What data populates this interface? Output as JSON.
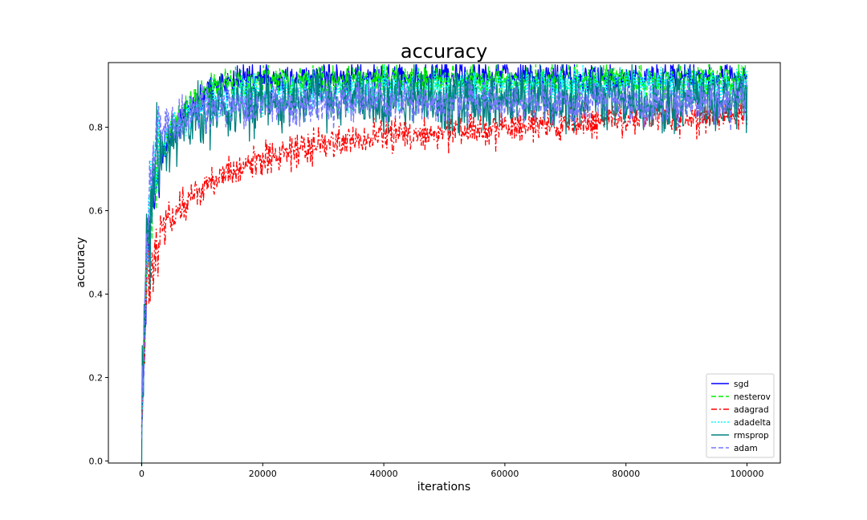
{
  "chart_data": {
    "type": "line",
    "title": "accuracy",
    "xlabel": "iterations",
    "ylabel": "accuracy",
    "xlim": [
      -5500,
      105500
    ],
    "ylim": [
      -0.005,
      0.955
    ],
    "xticks": [
      0,
      20000,
      40000,
      60000,
      80000,
      100000
    ],
    "xtick_labels": [
      "0",
      "20000",
      "40000",
      "60000",
      "80000",
      "100000"
    ],
    "yticks": [
      0.0,
      0.2,
      0.4,
      0.6,
      0.8
    ],
    "ytick_labels": [
      "0.0",
      "0.2",
      "0.4",
      "0.6",
      "0.8"
    ],
    "grid": false,
    "legend_position": "lower-right",
    "series": [
      {
        "name": "sgd",
        "color": "#0000ff",
        "dash": "solid",
        "x": [
          0,
          500,
          1000,
          2000,
          3000,
          4000,
          5000,
          6000,
          8000,
          10000,
          12000,
          15000,
          20000,
          30000,
          40000,
          60000,
          80000,
          100000
        ],
        "values": [
          0.06,
          0.3,
          0.5,
          0.65,
          0.72,
          0.76,
          0.79,
          0.81,
          0.84,
          0.88,
          0.9,
          0.91,
          0.915,
          0.92,
          0.92,
          0.92,
          0.92,
          0.92
        ],
        "noise": 0.018
      },
      {
        "name": "nesterov",
        "color": "#00ee00",
        "dash": "dashed",
        "x": [
          0,
          500,
          1000,
          2000,
          3000,
          4000,
          5000,
          6000,
          8000,
          10000,
          12000,
          15000,
          20000,
          30000,
          40000,
          60000,
          80000,
          100000
        ],
        "values": [
          0.06,
          0.32,
          0.52,
          0.66,
          0.73,
          0.77,
          0.8,
          0.82,
          0.85,
          0.88,
          0.895,
          0.9,
          0.905,
          0.91,
          0.91,
          0.91,
          0.91,
          0.91
        ],
        "noise": 0.02
      },
      {
        "name": "adagrad",
        "color": "#ff0000",
        "dash": "dashdot",
        "x": [
          0,
          500,
          1000,
          2000,
          3000,
          5000,
          8000,
          10000,
          15000,
          20000,
          25000,
          30000,
          40000,
          50000,
          60000,
          70000,
          80000,
          90000,
          100000
        ],
        "values": [
          0.05,
          0.3,
          0.44,
          0.5,
          0.54,
          0.59,
          0.63,
          0.66,
          0.69,
          0.72,
          0.74,
          0.76,
          0.78,
          0.79,
          0.8,
          0.81,
          0.82,
          0.825,
          0.83
        ],
        "noise": 0.02
      },
      {
        "name": "adadelta",
        "color": "#00ffff",
        "dash": "dotted",
        "x": [
          0,
          500,
          1000,
          2000,
          3000,
          5000,
          8000,
          10000,
          15000,
          20000,
          30000,
          40000,
          60000,
          80000,
          100000
        ],
        "values": [
          0.07,
          0.35,
          0.55,
          0.69,
          0.75,
          0.8,
          0.83,
          0.85,
          0.87,
          0.88,
          0.885,
          0.89,
          0.895,
          0.9,
          0.9
        ],
        "noise": 0.022
      },
      {
        "name": "rmsprop",
        "color": "#008080",
        "dash": "solid",
        "x": [
          0,
          500,
          1000,
          2000,
          3000,
          5000,
          8000,
          10000,
          15000,
          20000,
          30000,
          40000,
          60000,
          80000,
          100000
        ],
        "values": [
          0.07,
          0.35,
          0.55,
          0.68,
          0.74,
          0.78,
          0.81,
          0.83,
          0.85,
          0.86,
          0.865,
          0.865,
          0.865,
          0.865,
          0.865
        ],
        "noise": 0.035
      },
      {
        "name": "adam",
        "color": "#7777ff",
        "dash": "dashed",
        "x": [
          0,
          500,
          1000,
          2000,
          3000,
          5000,
          8000,
          10000,
          15000,
          20000,
          30000,
          40000,
          60000,
          80000,
          100000
        ],
        "values": [
          0.05,
          0.4,
          0.6,
          0.72,
          0.78,
          0.81,
          0.83,
          0.84,
          0.85,
          0.855,
          0.86,
          0.86,
          0.86,
          0.86,
          0.86
        ],
        "noise": 0.025
      }
    ]
  }
}
